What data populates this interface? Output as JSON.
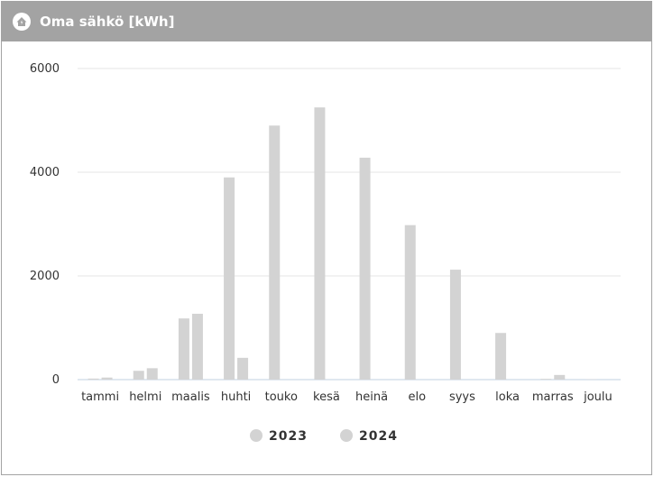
{
  "header": {
    "title": "Oma sähkö [kWh]",
    "icon": "home-icon"
  },
  "colors": {
    "header_bg": "#a3a3a3",
    "bar": "#d3d3d3",
    "legend_marker": "#d3d3d3",
    "grid": "#e6e6e6",
    "axis": "#c0d0e0"
  },
  "chart_data": {
    "type": "bar",
    "categories": [
      "tammi",
      "helmi",
      "maalis",
      "huhti",
      "touko",
      "kesä",
      "heinä",
      "elo",
      "syys",
      "loka",
      "marras",
      "joulu"
    ],
    "series": [
      {
        "name": "2023",
        "values": [
          20,
          170,
          1180,
          3900,
          4900,
          5250,
          4280,
          2980,
          2120,
          900,
          15,
          5
        ]
      },
      {
        "name": "2024",
        "values": [
          40,
          220,
          1270,
          420,
          0,
          0,
          0,
          0,
          0,
          0,
          90,
          0
        ]
      }
    ],
    "yticks": [
      0,
      2000,
      4000,
      6000
    ],
    "ylim": [
      0,
      6000
    ],
    "grid": true,
    "legend": "bottom-center"
  }
}
